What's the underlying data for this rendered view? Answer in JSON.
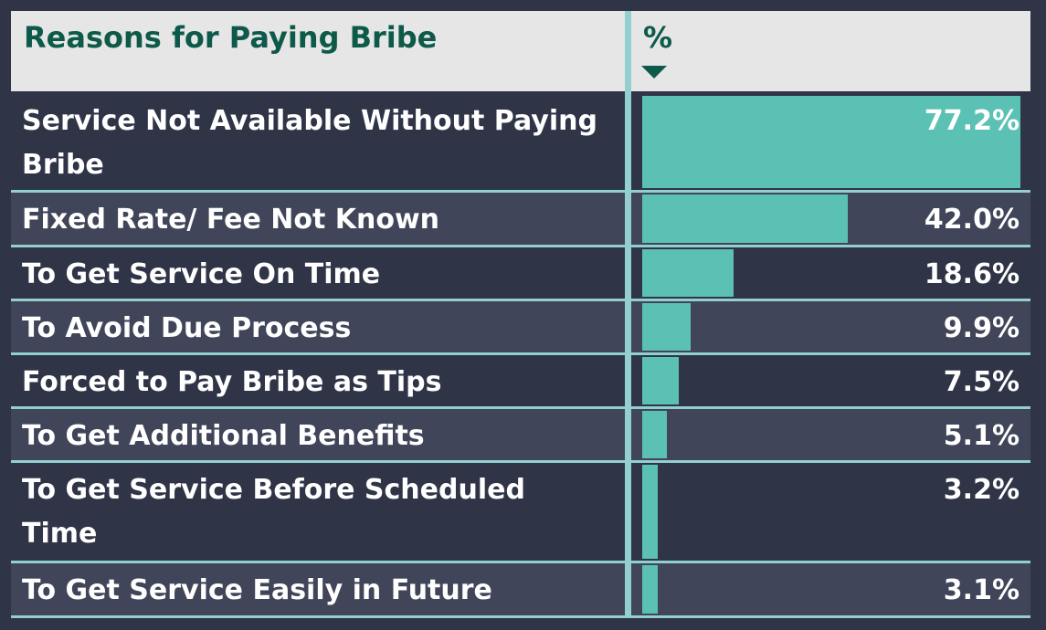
{
  "table": {
    "header": {
      "col1": "Reasons for Paying Bribe",
      "col2": "%"
    }
  },
  "chart_data": {
    "type": "table",
    "columns": [
      "Reasons for Paying Bribe",
      "%"
    ],
    "sort": "descending by %",
    "rows": [
      {
        "label": "Service Not Available Without Paying Bribe",
        "value": 77.2,
        "display": "77.2%"
      },
      {
        "label": "Fixed Rate/ Fee Not Known",
        "value": 42.0,
        "display": "42.0%"
      },
      {
        "label": "To Get Service On Time",
        "value": 18.6,
        "display": "18.6%"
      },
      {
        "label": "To Avoid Due Process",
        "value": 9.9,
        "display": "9.9%"
      },
      {
        "label": "Forced to Pay Bribe as Tips",
        "value": 7.5,
        "display": "7.5%"
      },
      {
        "label": "To Get Additional Benefits",
        "value": 5.1,
        "display": "5.1%"
      },
      {
        "label": "To Get Service Before Scheduled Time",
        "value": 3.2,
        "display": "3.2%"
      },
      {
        "label": "To Get Service Easily in Future",
        "value": 3.1,
        "display": "3.1%"
      }
    ],
    "bar_color": "#5cc1b5",
    "row_colors": [
      "#2f3447",
      "#404559"
    ],
    "header_color": "#0d5a4a"
  }
}
